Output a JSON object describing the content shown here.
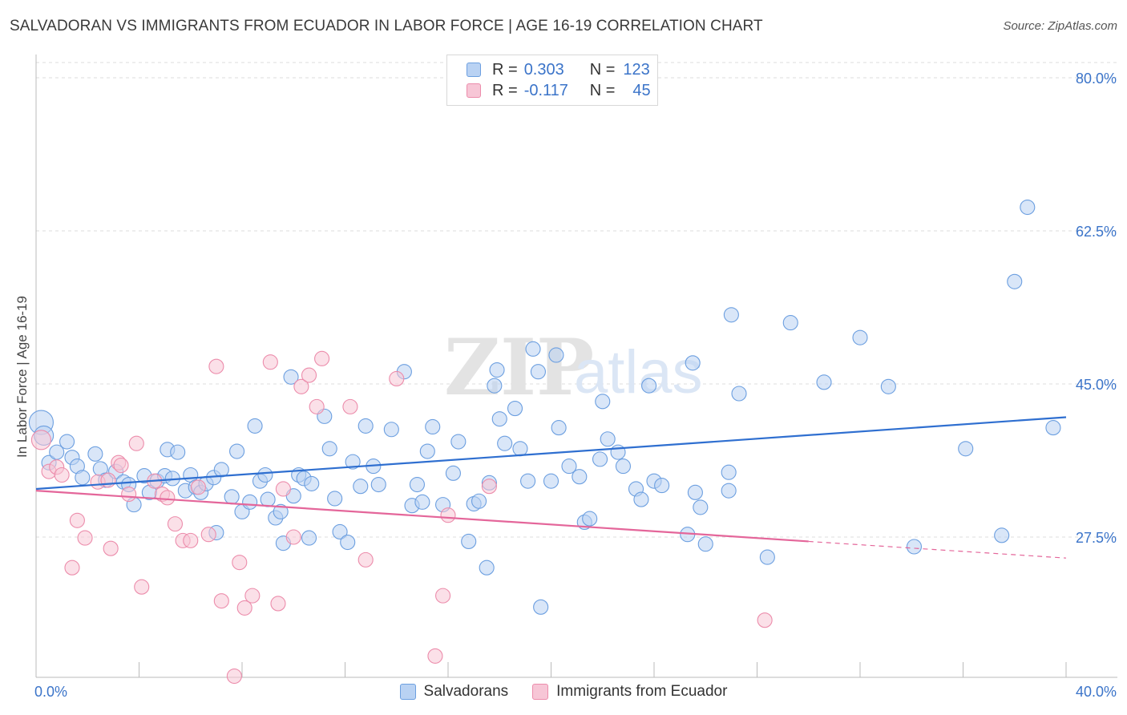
{
  "title": "SALVADORAN VS IMMIGRANTS FROM ECUADOR IN LABOR FORCE | AGE 16-19 CORRELATION CHART",
  "source": "Source: ZipAtlas.com",
  "watermark": {
    "zip": "ZIP",
    "atlas": "atlas"
  },
  "legend_top": {
    "rows": [
      {
        "r_label": "R =",
        "r_value": "0.303",
        "n_label": "N =",
        "n_value": "123",
        "color": "#6c9fe0"
      },
      {
        "r_label": "R =",
        "r_value": "-0.117",
        "n_label": "N =",
        "n_value": "45",
        "color": "#ec8cab"
      }
    ]
  },
  "chart_data": {
    "type": "scatter",
    "title": "SALVADORAN VS IMMIGRANTS FROM ECUADOR IN LABOR FORCE | AGE 16-19 CORRELATION CHART",
    "ylabel": "In Labor Force | Age 16-19",
    "xlabel": "",
    "xlim": [
      0,
      40
    ],
    "ylim": [
      10,
      82
    ],
    "x_ticks": [
      "0.0%",
      "40.0%"
    ],
    "y_ticks": [
      {
        "value": 80.0,
        "label": "80.0%"
      },
      {
        "value": 62.5,
        "label": "62.5%"
      },
      {
        "value": 45.0,
        "label": "45.0%"
      },
      {
        "value": 27.5,
        "label": "27.5%"
      }
    ],
    "grid": "horizontal-dashed",
    "legend": "bottom-center",
    "series": [
      {
        "name": "Salvadorans",
        "color": "#6c9fe0",
        "fill": "#b9d2f3",
        "trend": {
          "x": [
            0,
            40
          ],
          "y": [
            33.0,
            41.2
          ]
        },
        "points": [
          [
            0.2,
            40.6
          ],
          [
            0.3,
            39.1
          ],
          [
            0.5,
            36.0
          ],
          [
            0.8,
            37.2
          ],
          [
            1.2,
            38.4
          ],
          [
            1.4,
            36.6
          ],
          [
            1.6,
            35.6
          ],
          [
            1.8,
            34.3
          ],
          [
            2.3,
            37.0
          ],
          [
            2.5,
            35.3
          ],
          [
            2.7,
            34.0
          ],
          [
            3.1,
            35.0
          ],
          [
            3.4,
            33.8
          ],
          [
            3.6,
            33.5
          ],
          [
            3.8,
            31.2
          ],
          [
            4.2,
            34.5
          ],
          [
            4.4,
            32.6
          ],
          [
            4.7,
            33.9
          ],
          [
            5.0,
            34.5
          ],
          [
            5.1,
            37.5
          ],
          [
            5.3,
            34.2
          ],
          [
            5.5,
            37.2
          ],
          [
            5.8,
            32.8
          ],
          [
            6.0,
            34.6
          ],
          [
            6.2,
            33.2
          ],
          [
            6.4,
            32.6
          ],
          [
            6.6,
            33.6
          ],
          [
            6.9,
            34.3
          ],
          [
            7.0,
            28.0
          ],
          [
            7.2,
            35.2
          ],
          [
            7.6,
            32.1
          ],
          [
            7.8,
            37.3
          ],
          [
            8.0,
            30.4
          ],
          [
            8.3,
            31.5
          ],
          [
            8.5,
            40.2
          ],
          [
            8.7,
            33.9
          ],
          [
            8.9,
            34.6
          ],
          [
            9.0,
            31.8
          ],
          [
            9.3,
            29.7
          ],
          [
            9.5,
            30.4
          ],
          [
            9.6,
            26.8
          ],
          [
            9.9,
            45.8
          ],
          [
            10.0,
            32.2
          ],
          [
            10.2,
            34.6
          ],
          [
            10.4,
            34.2
          ],
          [
            10.6,
            27.4
          ],
          [
            10.7,
            33.6
          ],
          [
            11.2,
            41.3
          ],
          [
            11.4,
            37.6
          ],
          [
            11.6,
            31.9
          ],
          [
            11.8,
            28.1
          ],
          [
            12.1,
            26.9
          ],
          [
            12.3,
            36.1
          ],
          [
            12.6,
            33.3
          ],
          [
            12.8,
            40.2
          ],
          [
            13.1,
            35.6
          ],
          [
            13.3,
            33.5
          ],
          [
            13.8,
            39.8
          ],
          [
            14.3,
            46.4
          ],
          [
            14.6,
            31.1
          ],
          [
            14.8,
            33.5
          ],
          [
            15.0,
            31.5
          ],
          [
            15.2,
            37.3
          ],
          [
            15.4,
            40.1
          ],
          [
            15.8,
            31.2
          ],
          [
            16.2,
            34.8
          ],
          [
            16.4,
            38.4
          ],
          [
            16.8,
            27.0
          ],
          [
            17.0,
            31.3
          ],
          [
            17.2,
            31.6
          ],
          [
            17.5,
            24.0
          ],
          [
            17.8,
            44.8
          ],
          [
            17.9,
            46.6
          ],
          [
            17.6,
            33.7
          ],
          [
            18.0,
            41.0
          ],
          [
            18.2,
            38.2
          ],
          [
            18.6,
            42.2
          ],
          [
            18.8,
            37.6
          ],
          [
            19.1,
            33.9
          ],
          [
            19.3,
            49.0
          ],
          [
            19.5,
            46.4
          ],
          [
            19.6,
            19.5
          ],
          [
            20.0,
            33.9
          ],
          [
            20.2,
            48.3
          ],
          [
            20.3,
            40.0
          ],
          [
            20.7,
            35.6
          ],
          [
            21.1,
            34.4
          ],
          [
            21.3,
            29.2
          ],
          [
            21.5,
            29.6
          ],
          [
            21.9,
            36.4
          ],
          [
            22.0,
            43.0
          ],
          [
            22.2,
            38.7
          ],
          [
            22.6,
            37.2
          ],
          [
            22.8,
            35.6
          ],
          [
            23.3,
            33.0
          ],
          [
            23.5,
            31.8
          ],
          [
            23.8,
            44.8
          ],
          [
            24.0,
            33.9
          ],
          [
            24.3,
            33.4
          ],
          [
            25.3,
            27.8
          ],
          [
            25.5,
            47.4
          ],
          [
            25.6,
            32.6
          ],
          [
            25.8,
            30.9
          ],
          [
            26.0,
            26.7
          ],
          [
            26.9,
            34.9
          ],
          [
            26.9,
            32.8
          ],
          [
            27.0,
            52.9
          ],
          [
            27.3,
            43.9
          ],
          [
            28.4,
            25.2
          ],
          [
            29.3,
            52.0
          ],
          [
            30.6,
            45.2
          ],
          [
            32.0,
            50.3
          ],
          [
            33.1,
            44.7
          ],
          [
            34.1,
            26.4
          ],
          [
            36.1,
            37.6
          ],
          [
            37.5,
            27.7
          ],
          [
            38.0,
            56.7
          ],
          [
            38.5,
            65.2
          ],
          [
            39.5,
            40.0
          ]
        ]
      },
      {
        "name": "Immigrants from Ecuador",
        "color": "#ec8cab",
        "fill": "#f7c6d6",
        "trend": {
          "x": [
            0,
            30
          ],
          "y": [
            32.8,
            27.0
          ]
        },
        "trend_dashed": {
          "x": [
            30,
            40
          ],
          "y": [
            27.0,
            25.1
          ]
        },
        "points": [
          [
            0.2,
            38.6
          ],
          [
            0.5,
            35.0
          ],
          [
            0.8,
            35.5
          ],
          [
            1.0,
            34.6
          ],
          [
            1.4,
            24.0
          ],
          [
            1.6,
            29.4
          ],
          [
            1.9,
            27.4
          ],
          [
            2.4,
            33.8
          ],
          [
            2.8,
            34.0
          ],
          [
            2.9,
            26.2
          ],
          [
            3.2,
            36.0
          ],
          [
            3.3,
            35.7
          ],
          [
            3.6,
            32.4
          ],
          [
            3.9,
            38.2
          ],
          [
            4.1,
            21.8
          ],
          [
            4.6,
            33.9
          ],
          [
            4.9,
            32.4
          ],
          [
            5.1,
            32.0
          ],
          [
            5.4,
            29.0
          ],
          [
            5.7,
            27.1
          ],
          [
            6.0,
            27.1
          ],
          [
            6.3,
            33.2
          ],
          [
            6.7,
            27.8
          ],
          [
            7.0,
            47.0
          ],
          [
            7.2,
            20.2
          ],
          [
            7.7,
            11.6
          ],
          [
            7.9,
            24.6
          ],
          [
            8.1,
            19.4
          ],
          [
            8.4,
            20.8
          ],
          [
            9.1,
            47.5
          ],
          [
            9.4,
            19.9
          ],
          [
            9.6,
            33.0
          ],
          [
            10.0,
            27.5
          ],
          [
            10.3,
            44.7
          ],
          [
            10.6,
            46.0
          ],
          [
            10.9,
            42.4
          ],
          [
            11.1,
            47.9
          ],
          [
            12.2,
            42.4
          ],
          [
            12.8,
            24.9
          ],
          [
            14.0,
            45.6
          ],
          [
            15.5,
            13.9
          ],
          [
            15.8,
            20.8
          ],
          [
            16.0,
            30.0
          ],
          [
            17.6,
            33.3
          ],
          [
            28.3,
            18.0
          ]
        ]
      }
    ]
  },
  "bottom_legend": [
    {
      "label": "Salvadorans",
      "color": "#6c9fe0"
    },
    {
      "label": "Immigrants from Ecuador",
      "color": "#ec8cab"
    }
  ]
}
